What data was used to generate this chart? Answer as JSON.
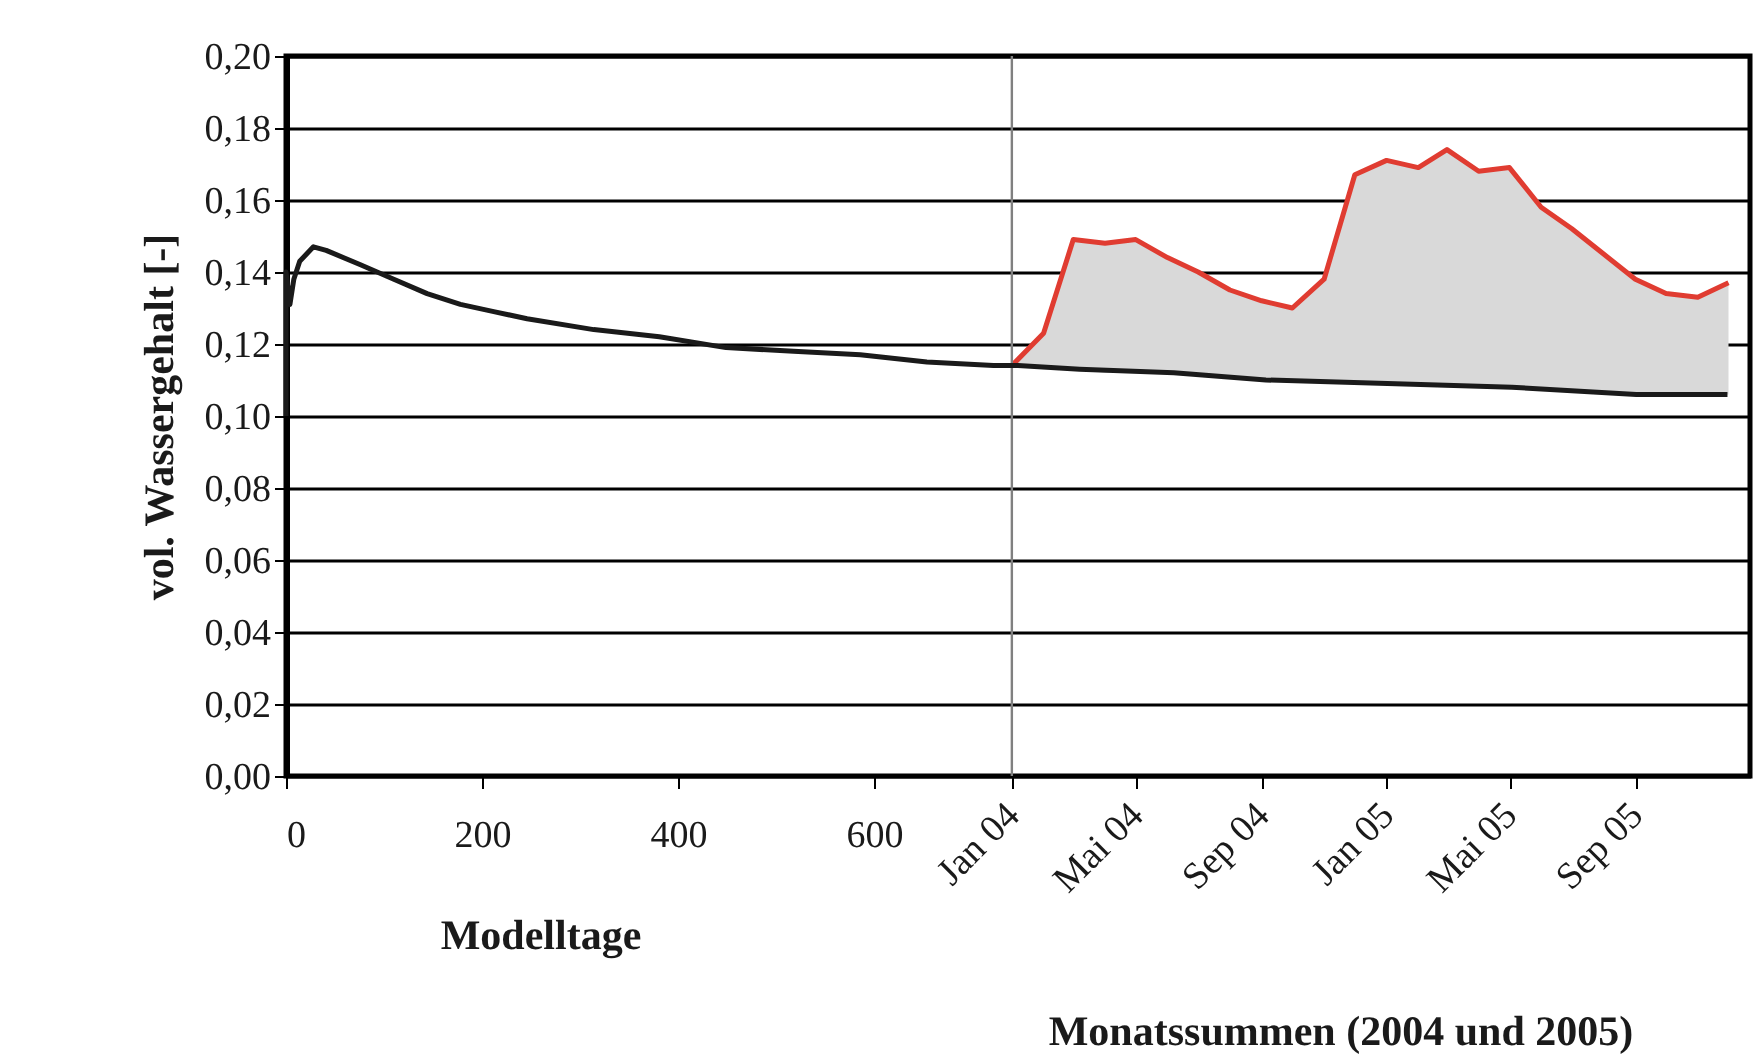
{
  "chart_data": {
    "type": "line",
    "xlabel": "Modelltage",
    "x2label": "Monatssummen (2004 und 2005)",
    "ylabel": "vol. Wassergehalt [-]",
    "xlim": [
      0,
      1494
    ],
    "xticks": [
      0,
      200,
      400,
      600
    ],
    "x2lim": [
      "2002-01-22",
      "2005-12-22"
    ],
    "x2ticks": [
      {
        "value": "2004-01",
        "label": "Jan 04"
      },
      {
        "value": "2004-05",
        "label": "Mai 04"
      },
      {
        "value": "2004-09",
        "label": "Sep 04"
      },
      {
        "value": "2005-01",
        "label": "Jan 05"
      },
      {
        "value": "2005-05",
        "label": "Mai 05"
      },
      {
        "value": "2005-09",
        "label": "Sep 05"
      }
    ],
    "ylim": [
      0,
      0.2
    ],
    "yticks": [
      {
        "value": 0,
        "label": "0,00"
      },
      {
        "value": 0.02,
        "label": "0,02"
      },
      {
        "value": 0.04,
        "label": "0,04"
      },
      {
        "value": 0.06,
        "label": "0,06"
      },
      {
        "value": 0.08,
        "label": "0,08"
      },
      {
        "value": 0.1,
        "label": "0,10"
      },
      {
        "value": 0.12,
        "label": "0,12"
      },
      {
        "value": 0.14,
        "label": "0,14"
      },
      {
        "value": 0.16,
        "label": "0,16"
      },
      {
        "value": 0.18,
        "label": "0,18"
      },
      {
        "value": 0.2,
        "label": "0,20"
      }
    ],
    "grid": "y",
    "marker": "none",
    "line_style": "solid",
    "ref_lines": [
      {
        "axis": "x2",
        "value": "2004-01",
        "color": "#808080"
      }
    ],
    "series": [
      {
        "color": "#1a1a1a",
        "x": [
          0,
          0,
          4,
          8,
          14,
          28,
          41,
          76,
          110,
          144,
          178,
          212,
          246,
          314,
          381,
          449,
          518,
          586,
          654,
          722,
          747,
          810,
          906,
          1000,
          1124,
          1251,
          1378,
          1471
        ],
        "values": [
          0.1,
          0.14,
          0.131,
          0.138,
          0.143,
          0.147,
          0.146,
          0.142,
          0.138,
          0.134,
          0.131,
          0.129,
          0.127,
          0.124,
          0.122,
          0.119,
          0.118,
          0.117,
          0.115,
          0.114,
          0.114,
          0.113,
          0.112,
          0.11,
          0.109,
          0.108,
          0.106,
          0.106
        ]
      },
      {
        "color": "#e03c31",
        "axis": "x2",
        "x": [
          "2004-01",
          "2004-02",
          "2004-03",
          "2004-04",
          "2004-05",
          "2004-06",
          "2004-07",
          "2004-08",
          "2004-09",
          "2004-10",
          "2004-11",
          "2004-12",
          "2005-01",
          "2005-02",
          "2005-03",
          "2005-04",
          "2005-05",
          "2005-06",
          "2005-07",
          "2005-08",
          "2005-09",
          "2005-10",
          "2005-11",
          "2005-12"
        ],
        "values": [
          0.114,
          0.123,
          0.149,
          0.148,
          0.149,
          0.144,
          0.14,
          0.135,
          0.132,
          0.13,
          0.138,
          0.167,
          0.171,
          0.169,
          0.174,
          0.168,
          0.169,
          0.158,
          0.152,
          0.145,
          0.138,
          0.134,
          0.133,
          0.137
        ],
        "upper": [
          0.114,
          0.123,
          0.149,
          0.148,
          0.149,
          0.144,
          0.14,
          0.135,
          0.132,
          0.13,
          0.138,
          0.167,
          0.171,
          0.169,
          0.174,
          0.168,
          0.169,
          0.158,
          0.152,
          0.145,
          0.138,
          0.134,
          0.133,
          0.137
        ],
        "lower": [
          0.114,
          0.113,
          0.113,
          0.112,
          0.112,
          0.112,
          0.111,
          0.111,
          0.11,
          0.11,
          0.11,
          0.109,
          0.109,
          0.109,
          0.108,
          0.108,
          0.108,
          0.107,
          0.107,
          0.107,
          0.106,
          0.106,
          0.106,
          0.106
        ]
      }
    ]
  }
}
